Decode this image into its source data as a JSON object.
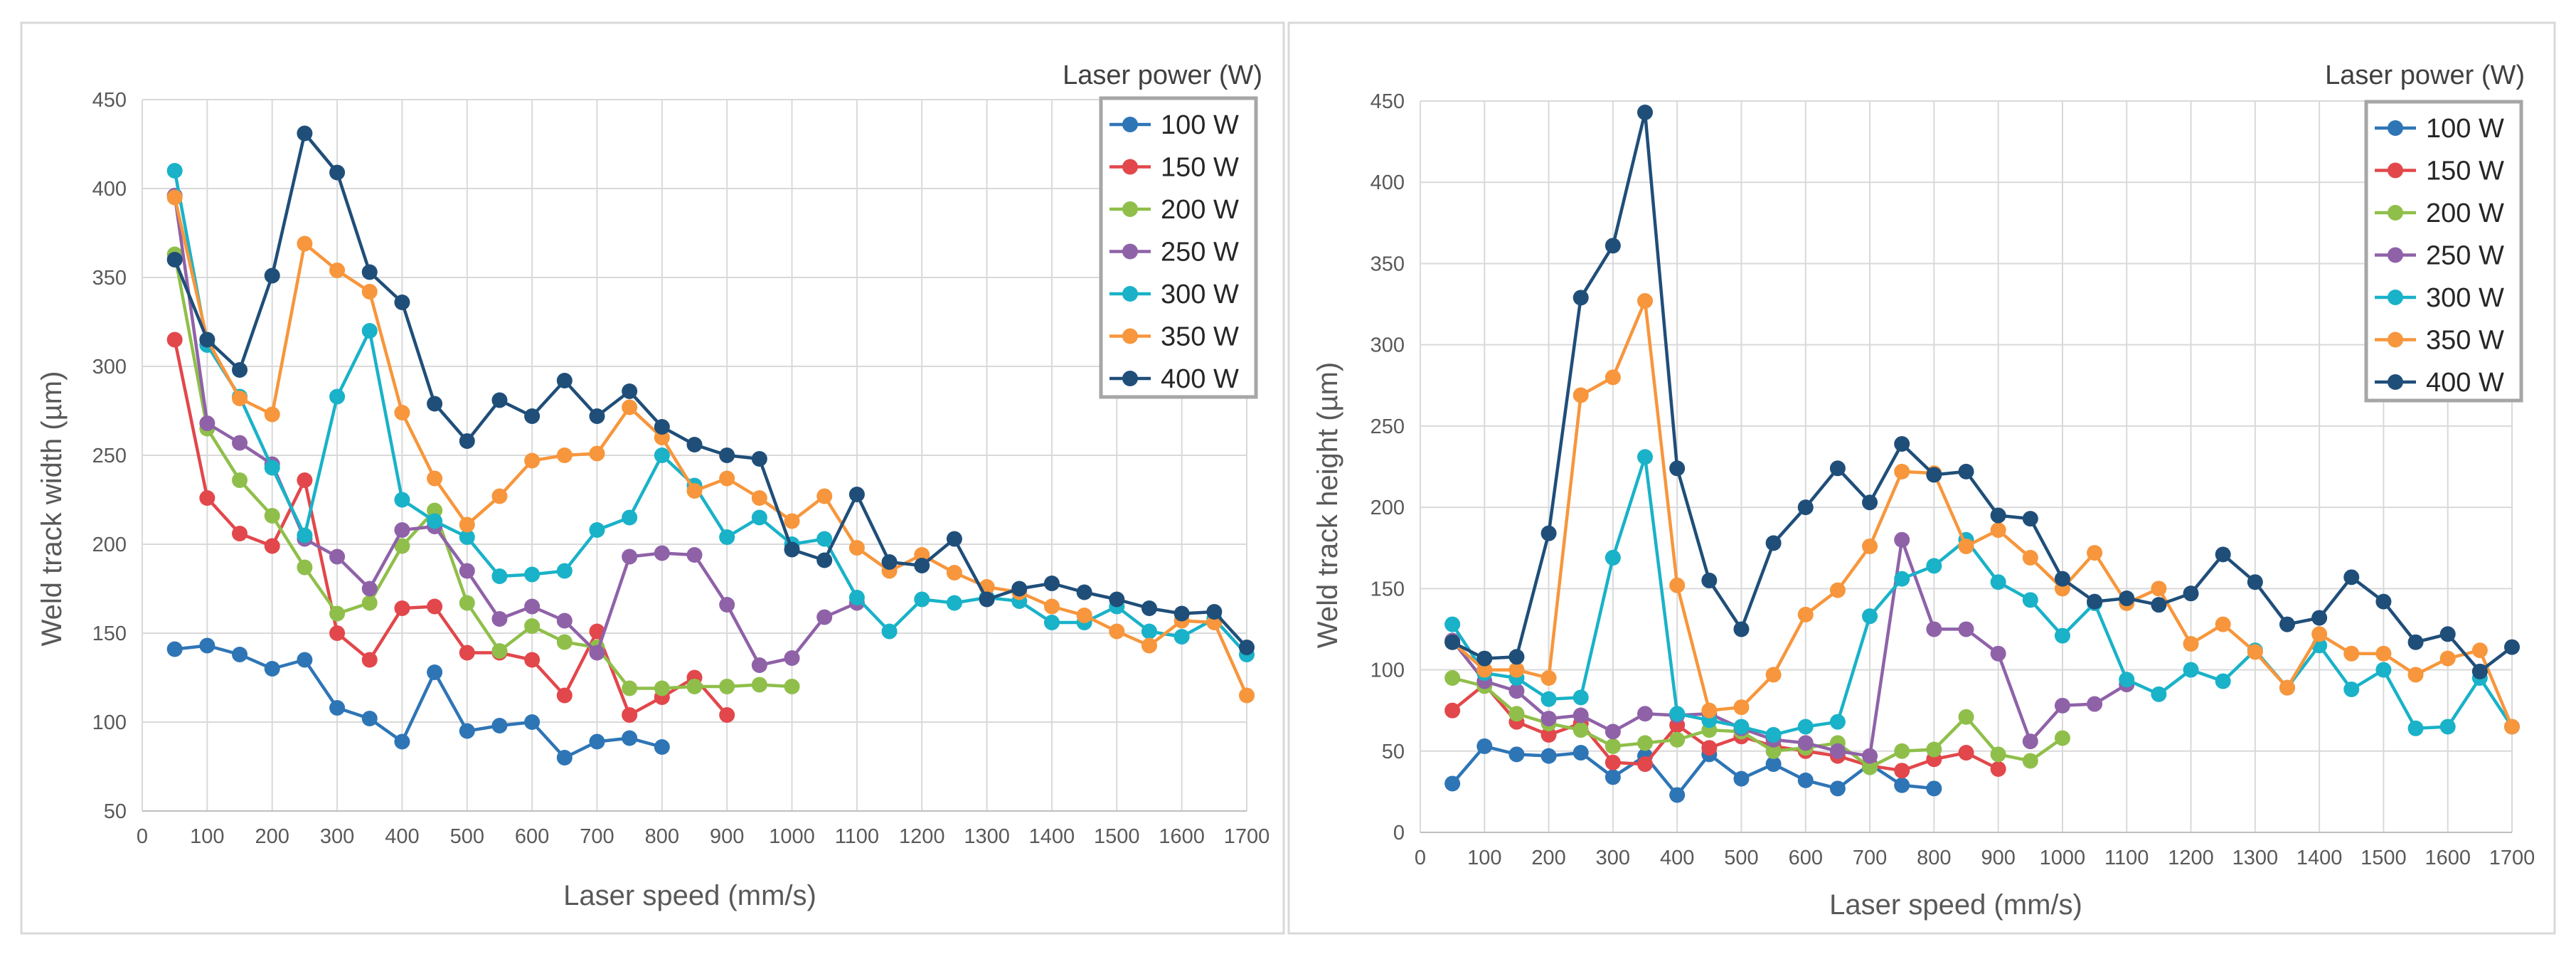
{
  "colors": {
    "100 W": "#2E75B6",
    "150 W": "#E2474B",
    "200 W": "#8FBF4A",
    "250 W": "#8F62A8",
    "300 W": "#19B2C8",
    "350 W": "#F7963C",
    "400 W": "#1F4E79"
  },
  "chart_data": [
    {
      "type": "line",
      "xlabel": "Laser speed (mm/s)",
      "ylabel": "Weld track width (µm)",
      "legend_title": "Laser power (W)",
      "xlim": [
        0,
        1700
      ],
      "ylim": [
        50,
        450
      ],
      "xticks": [
        0,
        100,
        200,
        300,
        400,
        500,
        600,
        700,
        800,
        900,
        1000,
        1100,
        1200,
        1300,
        1400,
        1500,
        1600,
        1700
      ],
      "yticks": [
        50,
        100,
        150,
        200,
        250,
        300,
        350,
        400,
        450
      ],
      "series": [
        {
          "name": "100 W",
          "x": [
            50,
            100,
            150,
            200,
            250,
            300,
            350,
            400,
            450,
            500,
            550,
            600,
            650,
            700,
            750,
            800
          ],
          "y": [
            141,
            143,
            138,
            130,
            135,
            108,
            102,
            89,
            128,
            95,
            98,
            100,
            80,
            89,
            91,
            86
          ]
        },
        {
          "name": "150 W",
          "x": [
            50,
            100,
            150,
            200,
            250,
            300,
            350,
            400,
            450,
            500,
            550,
            600,
            650,
            700,
            750,
            800,
            850,
            900
          ],
          "y": [
            315,
            226,
            206,
            199,
            236,
            150,
            135,
            164,
            165,
            139,
            139,
            135,
            115,
            151,
            104,
            114,
            125,
            104
          ]
        },
        {
          "name": "200 W",
          "x": [
            50,
            100,
            150,
            200,
            250,
            300,
            350,
            400,
            450,
            500,
            550,
            600,
            650,
            700,
            750,
            800,
            850,
            900,
            950,
            1000
          ],
          "y": [
            363,
            265,
            236,
            216,
            187,
            161,
            167,
            199,
            219,
            167,
            140,
            154,
            145,
            142,
            119,
            119,
            120,
            120,
            121,
            120
          ]
        },
        {
          "name": "250 W",
          "x": [
            50,
            100,
            150,
            200,
            250,
            300,
            350,
            400,
            450,
            500,
            550,
            600,
            650,
            700,
            750,
            800,
            850,
            900,
            950,
            1000,
            1050,
            1100
          ],
          "y": [
            396,
            268,
            257,
            245,
            203,
            193,
            175,
            208,
            210,
            185,
            158,
            165,
            157,
            139,
            193,
            195,
            194,
            166,
            132,
            136,
            159,
            167
          ]
        },
        {
          "name": "300 W",
          "x": [
            50,
            100,
            150,
            200,
            250,
            300,
            350,
            400,
            450,
            500,
            550,
            600,
            650,
            700,
            750,
            800,
            850,
            900,
            950,
            1000,
            1050,
            1100,
            1150,
            1200,
            1250,
            1300,
            1350,
            1400,
            1450,
            1500,
            1550,
            1600,
            1650,
            1700
          ],
          "y": [
            410,
            312,
            283,
            243,
            205,
            283,
            320,
            225,
            213,
            204,
            182,
            183,
            185,
            208,
            215,
            250,
            233,
            204,
            215,
            200,
            203,
            170,
            151,
            169,
            167,
            170,
            168,
            156,
            156,
            165,
            151,
            148,
            158,
            138
          ]
        },
        {
          "name": "350 W",
          "x": [
            50,
            100,
            150,
            200,
            250,
            300,
            350,
            400,
            450,
            500,
            550,
            600,
            650,
            700,
            750,
            800,
            850,
            900,
            950,
            1000,
            1050,
            1100,
            1150,
            1200,
            1250,
            1300,
            1350,
            1400,
            1450,
            1500,
            1550,
            1600,
            1650,
            1700
          ],
          "y": [
            395,
            315,
            282,
            273,
            369,
            354,
            342,
            274,
            237,
            211,
            227,
            247,
            250,
            251,
            277,
            260,
            230,
            237,
            226,
            213,
            227,
            198,
            185,
            194,
            184,
            176,
            173,
            165,
            160,
            151,
            143,
            157,
            156,
            115
          ]
        },
        {
          "name": "400 W",
          "x": [
            50,
            100,
            150,
            200,
            250,
            300,
            350,
            400,
            450,
            500,
            550,
            600,
            650,
            700,
            750,
            800,
            850,
            900,
            950,
            1000,
            1050,
            1100,
            1150,
            1200,
            1250,
            1300,
            1350,
            1400,
            1450,
            1500,
            1550,
            1600,
            1650,
            1700
          ],
          "y": [
            360,
            315,
            298,
            351,
            431,
            409,
            353,
            336,
            279,
            258,
            281,
            272,
            292,
            272,
            286,
            266,
            256,
            250,
            248,
            197,
            191,
            228,
            190,
            188,
            203,
            169,
            175,
            178,
            173,
            169,
            164,
            161,
            162,
            142
          ]
        }
      ]
    },
    {
      "type": "line",
      "xlabel": "Laser speed (mm/s)",
      "ylabel": "Weld track height (µm)",
      "legend_title": "Laser power (W)",
      "xlim": [
        0,
        1700
      ],
      "ylim": [
        0,
        450
      ],
      "xticks": [
        0,
        100,
        200,
        300,
        400,
        500,
        600,
        700,
        800,
        900,
        1000,
        1100,
        1200,
        1300,
        1400,
        1500,
        1600,
        1700
      ],
      "yticks": [
        0,
        50,
        100,
        150,
        200,
        250,
        300,
        350,
        400,
        450
      ],
      "series": [
        {
          "name": "100 W",
          "x": [
            50,
            100,
            150,
            200,
            250,
            300,
            350,
            400,
            450,
            500,
            550,
            600,
            650,
            700,
            750,
            800
          ],
          "y": [
            30,
            53,
            48,
            47,
            49,
            34,
            47,
            23,
            48,
            33,
            42,
            32,
            27,
            42,
            29,
            27
          ]
        },
        {
          "name": "150 W",
          "x": [
            50,
            100,
            150,
            200,
            250,
            300,
            350,
            400,
            450,
            500,
            550,
            600,
            650,
            700,
            750,
            800,
            850,
            900
          ],
          "y": [
            75,
            91,
            68,
            60,
            67,
            43,
            42,
            66,
            52,
            59,
            53,
            50,
            47,
            41,
            38,
            45,
            49,
            39
          ]
        },
        {
          "name": "200 W",
          "x": [
            50,
            100,
            150,
            200,
            250,
            300,
            350,
            400,
            450,
            500,
            550,
            600,
            650,
            700,
            750,
            800,
            850,
            900,
            950,
            1000
          ],
          "y": [
            95,
            90,
            73,
            67,
            63,
            53,
            55,
            57,
            63,
            62,
            50,
            52,
            55,
            40,
            50,
            51,
            71,
            48,
            44,
            58
          ]
        },
        {
          "name": "250 W",
          "x": [
            50,
            100,
            150,
            200,
            250,
            300,
            350,
            400,
            450,
            500,
            550,
            600,
            650,
            700,
            750,
            800,
            850,
            900,
            950,
            1000,
            1050,
            1100
          ],
          "y": [
            118,
            93,
            87,
            70,
            72,
            62,
            73,
            72,
            73,
            64,
            57,
            55,
            50,
            47,
            180,
            125,
            125,
            110,
            56,
            78,
            79,
            91
          ]
        },
        {
          "name": "300 W",
          "x": [
            50,
            100,
            150,
            200,
            250,
            300,
            350,
            400,
            450,
            500,
            550,
            600,
            650,
            700,
            750,
            800,
            850,
            900,
            950,
            1000,
            1050,
            1100,
            1150,
            1200,
            1250,
            1300,
            1350,
            1400,
            1450,
            1500,
            1550,
            1600,
            1650,
            1700
          ],
          "y": [
            128,
            98,
            95,
            82,
            83,
            169,
            231,
            73,
            69,
            65,
            60,
            65,
            68,
            133,
            156,
            164,
            180,
            154,
            143,
            121,
            141,
            94,
            85,
            100,
            93,
            112,
            89,
            115,
            88,
            100,
            64,
            65,
            95,
            65
          ]
        },
        {
          "name": "350 W",
          "x": [
            50,
            100,
            150,
            200,
            250,
            300,
            350,
            400,
            450,
            500,
            550,
            600,
            650,
            700,
            750,
            800,
            850,
            900,
            950,
            1000,
            1050,
            1100,
            1150,
            1200,
            1250,
            1300,
            1350,
            1400,
            1450,
            1500,
            1550,
            1600,
            1650,
            1700
          ],
          "y": [
            117,
            100,
            100,
            95,
            269,
            280,
            327,
            152,
            75,
            77,
            97,
            134,
            149,
            176,
            222,
            221,
            176,
            186,
            169,
            150,
            172,
            141,
            150,
            116,
            128,
            111,
            89,
            122,
            110,
            110,
            97,
            107,
            112,
            65
          ]
        },
        {
          "name": "400 W",
          "x": [
            50,
            100,
            150,
            200,
            250,
            300,
            350,
            400,
            450,
            500,
            550,
            600,
            650,
            700,
            750,
            800,
            850,
            900,
            950,
            1000,
            1050,
            1100,
            1150,
            1200,
            1250,
            1300,
            1350,
            1400,
            1450,
            1500,
            1550,
            1600,
            1650,
            1700
          ],
          "y": [
            117,
            107,
            108,
            184,
            329,
            361,
            443,
            224,
            155,
            125,
            178,
            200,
            224,
            203,
            239,
            220,
            222,
            195,
            193,
            156,
            142,
            144,
            140,
            147,
            171,
            154,
            128,
            132,
            157,
            142,
            117,
            122,
            99,
            114
          ]
        }
      ]
    }
  ]
}
